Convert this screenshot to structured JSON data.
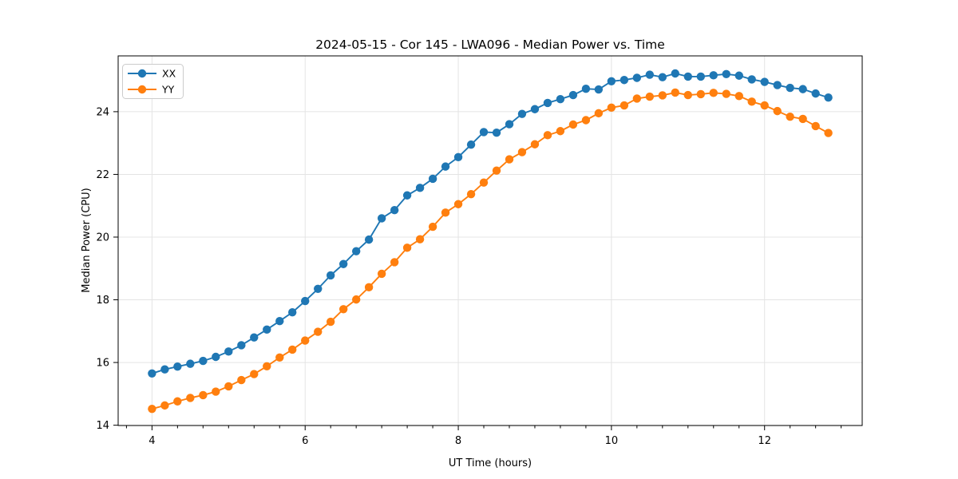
{
  "figure": {
    "background": "#ffffff",
    "text_color": "#000000",
    "grid_color": "#e4e4e4"
  },
  "chart_data": {
    "type": "line",
    "title": "2024-05-15 - Cor 145 - LWA096 - Median Power vs. Time",
    "xlabel": "UT Time (hours)",
    "ylabel": "Median Power (CPU)",
    "xlim": [
      3.558,
      13.275
    ],
    "ylim": [
      13.99,
      25.78
    ],
    "x_ticks": [
      4,
      6,
      8,
      10,
      12
    ],
    "y_ticks": [
      14,
      16,
      18,
      20,
      22,
      24
    ],
    "x_minor_step": 0.33333,
    "grid": true,
    "legend_position": "upper-left",
    "marker": "circle",
    "x": [
      4.0,
      4.167,
      4.333,
      4.5,
      4.667,
      4.833,
      5.0,
      5.167,
      5.333,
      5.5,
      5.667,
      5.833,
      6.0,
      6.167,
      6.333,
      6.5,
      6.667,
      6.833,
      7.0,
      7.167,
      7.333,
      7.5,
      7.667,
      7.833,
      8.0,
      8.167,
      8.333,
      8.5,
      8.667,
      8.833,
      9.0,
      9.167,
      9.333,
      9.5,
      9.667,
      9.833,
      10.0,
      10.167,
      10.333,
      10.5,
      10.667,
      10.833,
      11.0,
      11.167,
      11.333,
      11.5,
      11.667,
      11.833,
      12.0,
      12.167,
      12.333,
      12.5,
      12.667,
      12.833
    ],
    "series": [
      {
        "name": "XX",
        "color": "#1f77b4",
        "values": [
          15.65,
          15.78,
          15.87,
          15.96,
          16.05,
          16.18,
          16.35,
          16.55,
          16.8,
          17.05,
          17.32,
          17.6,
          17.96,
          18.35,
          18.78,
          19.14,
          19.55,
          19.92,
          20.6,
          20.86,
          21.33,
          21.57,
          21.86,
          22.25,
          22.55,
          22.95,
          23.35,
          23.33,
          23.6,
          23.93,
          24.08,
          24.28,
          24.4,
          24.53,
          24.73,
          24.71,
          24.97,
          25.01,
          25.08,
          25.18,
          25.1,
          25.22,
          25.12,
          25.12,
          25.16,
          25.2,
          25.15,
          25.03,
          24.95,
          24.85,
          24.76,
          24.72,
          24.58,
          24.45
        ]
      },
      {
        "name": "YY",
        "color": "#ff7f0e",
        "values": [
          14.52,
          14.63,
          14.76,
          14.87,
          14.96,
          15.07,
          15.24,
          15.44,
          15.63,
          15.88,
          16.16,
          16.41,
          16.7,
          16.98,
          17.3,
          17.7,
          18.01,
          18.4,
          18.83,
          19.2,
          19.66,
          19.93,
          20.33,
          20.78,
          21.05,
          21.37,
          21.74,
          22.12,
          22.48,
          22.71,
          22.96,
          23.25,
          23.38,
          23.59,
          23.73,
          23.95,
          24.13,
          24.2,
          24.42,
          24.48,
          24.52,
          24.61,
          24.53,
          24.56,
          24.6,
          24.57,
          24.5,
          24.32,
          24.2,
          24.02,
          23.84,
          23.77,
          23.54,
          23.32
        ]
      }
    ]
  }
}
